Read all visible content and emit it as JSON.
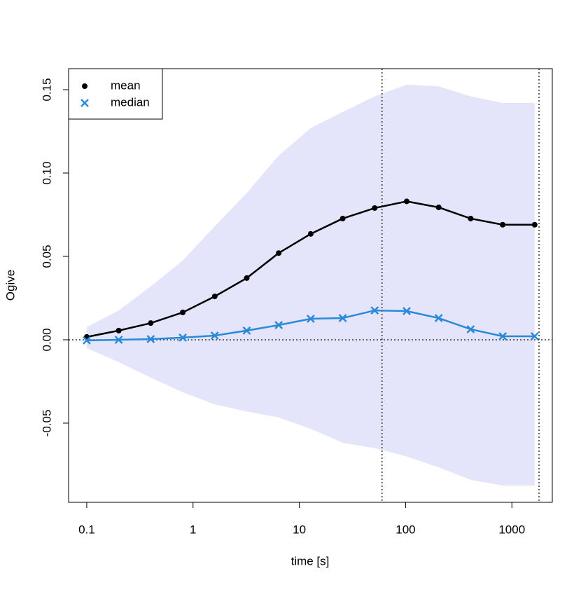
{
  "chart_data": {
    "type": "line",
    "x_label": "time [s]",
    "y_label": "Ogive",
    "x": [
      0.1,
      0.2,
      0.4,
      0.8,
      1.6,
      3.2,
      6.4,
      12.8,
      25.6,
      51.2,
      102.4,
      204.8,
      409.6,
      819.2,
      1638.4
    ],
    "series": [
      {
        "name": "mean",
        "color": "#000000",
        "marker": "dot",
        "values": [
          0.0017,
          0.0055,
          0.01,
          0.0164,
          0.026,
          0.037,
          0.052,
          0.0635,
          0.0727,
          0.079,
          0.083,
          0.0794,
          0.0727,
          0.069,
          0.069
        ]
      },
      {
        "name": "median",
        "color": "#2b8ad8",
        "marker": "x",
        "values": [
          -0.0004,
          0.0,
          0.0004,
          0.0013,
          0.0025,
          0.0055,
          0.0088,
          0.0126,
          0.013,
          0.0176,
          0.0172,
          0.013,
          0.0063,
          0.0021,
          0.0021
        ]
      }
    ],
    "band": {
      "color": "#e4e4fa",
      "upper": [
        0.0076,
        0.0176,
        0.032,
        0.0475,
        0.068,
        0.088,
        0.1105,
        0.127,
        0.1366,
        0.146,
        0.153,
        0.152,
        0.146,
        0.142,
        0.142
      ],
      "lower": [
        -0.005,
        -0.0134,
        -0.0227,
        -0.0315,
        -0.0387,
        -0.043,
        -0.0466,
        -0.0534,
        -0.0618,
        -0.065,
        -0.07,
        -0.0765,
        -0.084,
        -0.0874,
        -0.0874
      ]
    },
    "vlines": [
      60,
      1800
    ],
    "hline": 0,
    "x_log": true,
    "xlim": [
      0.0675,
      2400
    ],
    "xticks": [
      0.1,
      1,
      10,
      100,
      1000
    ],
    "ylim": [
      -0.0975,
      0.1626
    ],
    "yticks": [
      -0.05,
      {
        "value": 0,
        "label": "0.00"
      },
      0.05,
      {
        "value": 0.1,
        "label": "0.10"
      },
      0.15
    ],
    "legend": "top-left"
  }
}
